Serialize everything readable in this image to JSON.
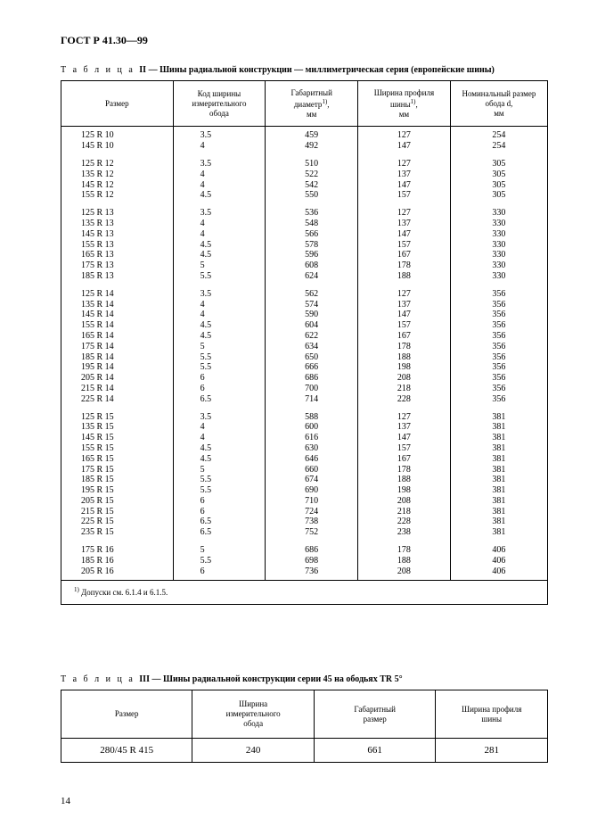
{
  "doc_id": "ГОСТ Р 41.30—99",
  "table2": {
    "caption_label": "Т а б л и ц а",
    "caption_num": "II",
    "caption_text": "— Шины радиальной конструкции — миллиметрическая серия (европейские шины)",
    "headers": [
      "Размер",
      "Код ширины\nизмерительного\nобода",
      "Габаритный\nдиаметр<sup>1)</sup>,\nмм",
      "Ширина профиля\nшины<sup>1)</sup>,\nмм",
      "Номинальный размер\nобода d,\nмм"
    ],
    "col_widths": [
      "23%",
      "19%",
      "19%",
      "19%",
      "20%"
    ],
    "clusters": [
      {
        "rows": [
          [
            "125 R 10",
            "3.5",
            "459",
            "127",
            "254"
          ],
          [
            "145 R 10",
            "4",
            "492",
            "147",
            "254"
          ]
        ]
      },
      {
        "rows": [
          [
            "125 R 12",
            "3.5",
            "510",
            "127",
            "305"
          ],
          [
            "135 R 12",
            "4",
            "522",
            "137",
            "305"
          ],
          [
            "145 R 12",
            "4",
            "542",
            "147",
            "305"
          ],
          [
            "155 R 12",
            "4.5",
            "550",
            "157",
            "305"
          ]
        ]
      },
      {
        "rows": [
          [
            "125 R 13",
            "3.5",
            "536",
            "127",
            "330"
          ],
          [
            "135 R 13",
            "4",
            "548",
            "137",
            "330"
          ],
          [
            "145 R 13",
            "4",
            "566",
            "147",
            "330"
          ],
          [
            "155 R 13",
            "4.5",
            "578",
            "157",
            "330"
          ],
          [
            "165 R 13",
            "4.5",
            "596",
            "167",
            "330"
          ],
          [
            "175 R 13",
            "5",
            "608",
            "178",
            "330"
          ],
          [
            "185 R 13",
            "5.5",
            "624",
            "188",
            "330"
          ]
        ]
      },
      {
        "rows": [
          [
            "125 R 14",
            "3.5",
            "562",
            "127",
            "356"
          ],
          [
            "135 R 14",
            "4",
            "574",
            "137",
            "356"
          ],
          [
            "145 R 14",
            "4",
            "590",
            "147",
            "356"
          ],
          [
            "155 R 14",
            "4.5",
            "604",
            "157",
            "356"
          ],
          [
            "165 R 14",
            "4.5",
            "622",
            "167",
            "356"
          ],
          [
            "175 R 14",
            "5",
            "634",
            "178",
            "356"
          ],
          [
            "185 R 14",
            "5.5",
            "650",
            "188",
            "356"
          ],
          [
            "195 R 14",
            "5.5",
            "666",
            "198",
            "356"
          ],
          [
            "205 R 14",
            "6",
            "686",
            "208",
            "356"
          ],
          [
            "215 R 14",
            "6",
            "700",
            "218",
            "356"
          ],
          [
            "225 R 14",
            "6.5",
            "714",
            "228",
            "356"
          ]
        ]
      },
      {
        "rows": [
          [
            "125 R 15",
            "3.5",
            "588",
            "127",
            "381"
          ],
          [
            "135 R 15",
            "4",
            "600",
            "137",
            "381"
          ],
          [
            "145 R 15",
            "4",
            "616",
            "147",
            "381"
          ],
          [
            "155 R 15",
            "4.5",
            "630",
            "157",
            "381"
          ],
          [
            "165 R 15",
            "4.5",
            "646",
            "167",
            "381"
          ],
          [
            "175 R 15",
            "5",
            "660",
            "178",
            "381"
          ],
          [
            "185 R 15",
            "5.5",
            "674",
            "188",
            "381"
          ],
          [
            "195 R 15",
            "5.5",
            "690",
            "198",
            "381"
          ],
          [
            "205 R 15",
            "6",
            "710",
            "208",
            "381"
          ],
          [
            "215 R 15",
            "6",
            "724",
            "218",
            "381"
          ],
          [
            "225 R 15",
            "6.5",
            "738",
            "228",
            "381"
          ],
          [
            "235 R 15",
            "6.5",
            "752",
            "238",
            "381"
          ]
        ]
      },
      {
        "rows": [
          [
            "175 R 16",
            "5",
            "686",
            "178",
            "406"
          ],
          [
            "185 R 16",
            "5.5",
            "698",
            "188",
            "406"
          ],
          [
            "205 R 16",
            "6",
            "736",
            "208",
            "406"
          ]
        ]
      }
    ],
    "footnote": "<sup>1)</sup> Допуски см. 6.1.4 и 6.1.5."
  },
  "table3": {
    "caption_label": "Т а б л и ц а",
    "caption_num": "III",
    "caption_text": "— Шины радиальной конструкции серии 45 на ободьях TR 5°",
    "headers": [
      "Размер",
      "Ширина\nизмерительного\nобода",
      "Габаритный\nразмер",
      "Ширина профиля\nшины"
    ],
    "col_widths": [
      "27%",
      "25%",
      "25%",
      "23%"
    ],
    "row": [
      "280/45 R 415",
      "240",
      "661",
      "281"
    ]
  },
  "page_number": "14"
}
